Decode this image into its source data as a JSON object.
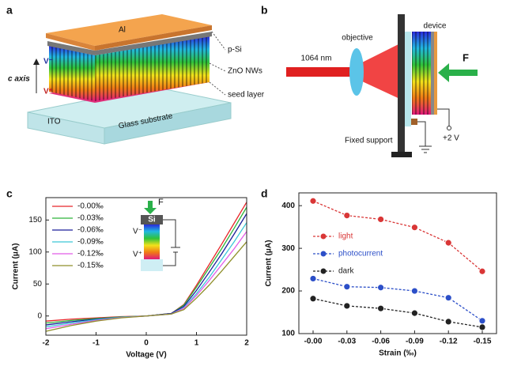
{
  "diagram_a": {
    "label": "a",
    "al": "Al",
    "psi": "p-Si",
    "zno": "ZnO NWs",
    "seed": "seed layer",
    "caxis": "c axis",
    "vminus": "V⁻",
    "vplus": "V⁺",
    "ito": "ITO",
    "glass": "Glass substrate"
  },
  "diagram_b": {
    "label": "b",
    "objective": "objective",
    "device": "device",
    "laser": "1064 nm",
    "force": "F",
    "support": "Fixed support",
    "bias": "+2 V"
  },
  "inset_c": {
    "force": "F",
    "si": "Si",
    "vminus": "V⁻",
    "vplus": "V⁺"
  },
  "chart_data": [
    {
      "type": "line",
      "panel_label": "c",
      "xlabel": "Voltage (V)",
      "ylabel": "Current (μA)",
      "x": [
        -2,
        -1.5,
        -1,
        -0.5,
        0,
        0.5,
        0.75,
        1,
        1.25,
        1.5,
        1.75,
        2
      ],
      "xlim": [
        -2,
        2
      ],
      "xticks": [
        -2,
        -1,
        0,
        1,
        2
      ],
      "ylim": [
        -30,
        185
      ],
      "yticks": [
        0,
        50,
        100,
        150
      ],
      "legend": "upper left",
      "markers": false,
      "line_style": "solid",
      "series": [
        {
          "name": "-0.00‰",
          "color": "#e8262a",
          "values": [
            -8,
            -5,
            -3,
            -1,
            0,
            4,
            18,
            48,
            80,
            112,
            145,
            178
          ]
        },
        {
          "name": "-0.03‰",
          "color": "#2fb43a",
          "values": [
            -11,
            -7,
            -4,
            -1.5,
            0,
            4,
            17,
            45,
            75,
            105,
            137,
            170
          ]
        },
        {
          "name": "-0.06‰",
          "color": "#1b1f9a",
          "values": [
            -14,
            -9,
            -5,
            -2,
            0,
            4,
            15,
            40,
            68,
            97,
            128,
            160
          ]
        },
        {
          "name": "-0.09‰",
          "color": "#3cc8d8",
          "values": [
            -17,
            -11,
            -6,
            -2,
            0,
            3,
            13,
            35,
            60,
            88,
            116,
            146
          ]
        },
        {
          "name": "-0.12‰",
          "color": "#e25ce8",
          "values": [
            -20,
            -13,
            -7,
            -2.5,
            0,
            3,
            12,
            32,
            55,
            80,
            105,
            132
          ]
        },
        {
          "name": "-0.15‰",
          "color": "#8f8f2a",
          "values": [
            -24,
            -15,
            -8,
            -3,
            0,
            3,
            10,
            28,
            48,
            70,
            93,
            116
          ]
        }
      ]
    },
    {
      "type": "line",
      "panel_label": "d",
      "xlabel": "Strain (‰)",
      "ylabel": "Current (μA)",
      "categories": [
        "-0.00",
        "-0.03",
        "-0.06",
        "-0.09",
        "-0.12",
        "-0.15"
      ],
      "ylim": [
        100,
        430
      ],
      "yticks": [
        100,
        200,
        300,
        400
      ],
      "legend": "center left",
      "markers": true,
      "line_style": "dashed",
      "series": [
        {
          "name": "light",
          "color": "#d93636",
          "values": [
            411,
            377,
            368,
            349,
            313,
            246
          ]
        },
        {
          "name": "photocurrent",
          "color": "#2c4fc8",
          "values": [
            229,
            210,
            208,
            200,
            184,
            130
          ]
        },
        {
          "name": "dark",
          "color": "#222222",
          "values": [
            182,
            165,
            159,
            148,
            128,
            115
          ]
        }
      ]
    }
  ]
}
